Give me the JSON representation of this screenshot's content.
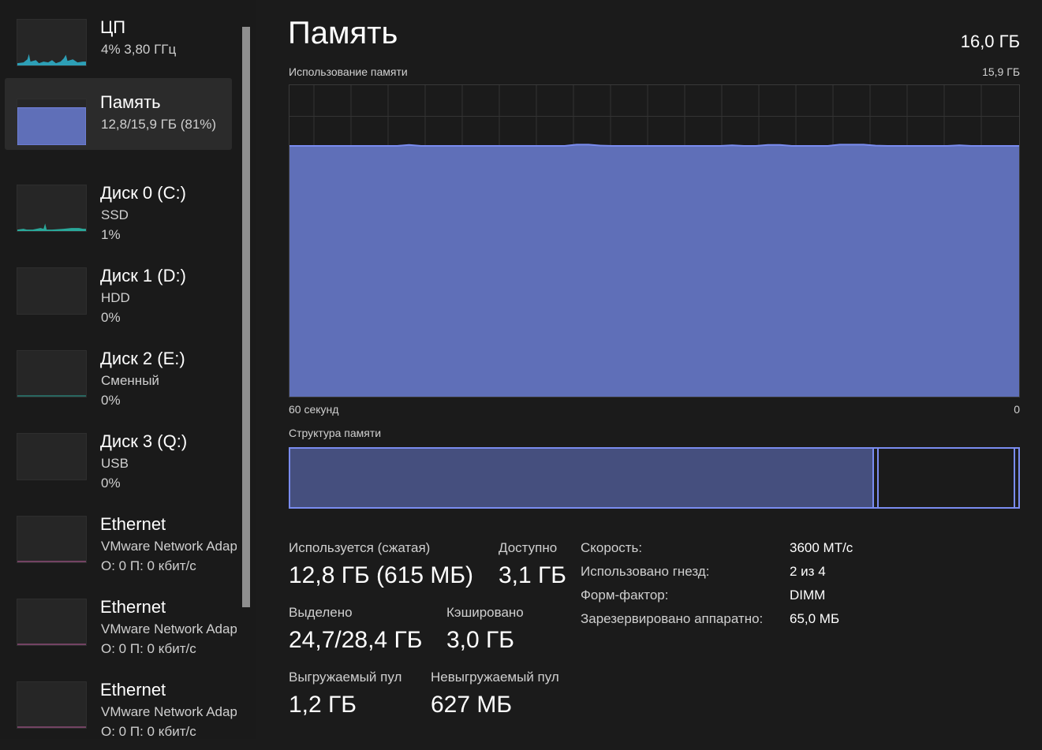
{
  "colors": {
    "accent": "#7a8cf0",
    "memory_fill": "#5f6fb8",
    "cpu": "#2fb5d0",
    "disk": "#2aa89a",
    "network": "#c060a0",
    "in_use": "#454f7e"
  },
  "sidebar": {
    "items": [
      {
        "title": "ЦП",
        "line1": "4%  3,80 ГГц",
        "line2": "",
        "graph": "cpu",
        "selected": false
      },
      {
        "title": "Память",
        "line1": "12,8/15,9 ГБ (81%)",
        "line2": "",
        "graph": "memory",
        "selected": true
      },
      {
        "title": "Диск 0 (C:)",
        "line1": "SSD",
        "line2": "1%",
        "graph": "disk",
        "selected": false
      },
      {
        "title": "Диск 1 (D:)",
        "line1": "HDD",
        "line2": "0%",
        "graph": "empty",
        "selected": false
      },
      {
        "title": "Диск 2 (E:)",
        "line1": "Сменный",
        "line2": "0%",
        "graph": "disk-flat",
        "selected": false
      },
      {
        "title": "Диск 3 (Q:)",
        "line1": "USB",
        "line2": "0%",
        "graph": "empty",
        "selected": false
      },
      {
        "title": "Ethernet",
        "line1": "VMware Network Adapter",
        "line2": "О: 0  П: 0 кбит/с",
        "graph": "network",
        "selected": false
      },
      {
        "title": "Ethernet",
        "line1": "VMware Network Adapter",
        "line2": "О: 0  П: 0 кбит/с",
        "graph": "network",
        "selected": false
      },
      {
        "title": "Ethernet",
        "line1": "VMware Network Adapter",
        "line2": "О: 0  П: 0 кбит/с",
        "graph": "network",
        "selected": false
      }
    ]
  },
  "main": {
    "title": "Память",
    "total": "16,0 ГБ",
    "usage_label": "Использование памяти",
    "usage_max": "15,9 ГБ",
    "time_left": "60 секунд",
    "time_right": "0",
    "structure_label": "Структура памяти",
    "structure": {
      "in_use": 0.805,
      "modified": 0.004,
      "standby": 0.187,
      "free": 0.004
    },
    "stats": {
      "in_use_label": "Используется (сжатая)",
      "in_use_value": "12,8 ГБ (615 МБ)",
      "available_label": "Доступно",
      "available_value": "3,1 ГБ",
      "committed_label": "Выделено",
      "committed_value": "24,7/28,4 ГБ",
      "cached_label": "Кэшировано",
      "cached_value": "3,0 ГБ",
      "paged_label": "Выгружаемый пул",
      "paged_value": "1,2 ГБ",
      "nonpaged_label": "Невыгружаемый пул",
      "nonpaged_value": "627 МБ"
    },
    "properties": [
      {
        "label": "Скорость:",
        "value": "3600 МТ/с"
      },
      {
        "label": "Использовано гнезд:",
        "value": "2 из 4"
      },
      {
        "label": "Форм-фактор:",
        "value": "DIMM"
      },
      {
        "label": "Зарезервировано аппаратно:",
        "value": "65,0 МБ"
      }
    ]
  },
  "memory_graph": {
    "type": "area",
    "ylim": [
      0,
      100
    ],
    "unit": "percent",
    "values": [
      80.5,
      80.5,
      80.5,
      80.5,
      80.5,
      80.5,
      80.5,
      80.5,
      80.5,
      80.5,
      80.8,
      80.5,
      80.5,
      80.5,
      80.5,
      80.5,
      80.5,
      80.5,
      80.5,
      80.5,
      80.5,
      80.5,
      80.5,
      80.5,
      80.9,
      80.9,
      80.6,
      80.5,
      80.5,
      80.5,
      80.5,
      80.5,
      80.5,
      80.5,
      80.5,
      80.5,
      80.5,
      80.7,
      80.5,
      80.5,
      80.8,
      80.8,
      80.5,
      80.5,
      80.5,
      80.5,
      80.9,
      80.9,
      80.9,
      80.6,
      80.5,
      80.5,
      80.5,
      80.5,
      80.5,
      80.5,
      80.7,
      80.5,
      80.5,
      80.5,
      80.5,
      80.5
    ]
  }
}
